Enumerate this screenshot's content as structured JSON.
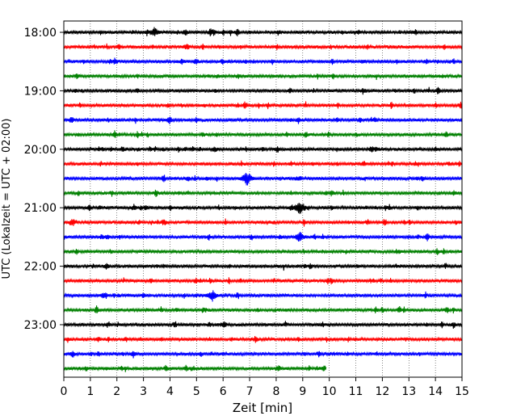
{
  "chart_data": {
    "type": "line",
    "chart_kind": "helicorder",
    "xlabel": "Zeit  [min]",
    "ylabel": "UTC (Lokalzeit = UTC + 02:00)",
    "xlim": [
      0,
      15
    ],
    "xticks": [
      0,
      1,
      2,
      3,
      4,
      5,
      6,
      7,
      8,
      9,
      10,
      11,
      12,
      13,
      14,
      15
    ],
    "ylim": [
      "18:00",
      "23:45"
    ],
    "ytick_labels": [
      "18:00",
      "19:00",
      "20:00",
      "21:00",
      "22:00",
      "23:00"
    ],
    "grid": "vertical dotted at each minute",
    "trace_interval_min": 15,
    "colors": [
      "#000000",
      "#ff0000",
      "#0000ff",
      "#008000"
    ],
    "traces": [
      {
        "start": "18:00",
        "color": "#000000",
        "end_min": 15
      },
      {
        "start": "18:15",
        "color": "#ff0000",
        "end_min": 15
      },
      {
        "start": "18:30",
        "color": "#0000ff",
        "end_min": 15
      },
      {
        "start": "18:45",
        "color": "#008000",
        "end_min": 15
      },
      {
        "start": "19:00",
        "color": "#000000",
        "end_min": 15
      },
      {
        "start": "19:15",
        "color": "#ff0000",
        "end_min": 15
      },
      {
        "start": "19:30",
        "color": "#0000ff",
        "end_min": 15
      },
      {
        "start": "19:45",
        "color": "#008000",
        "end_min": 15
      },
      {
        "start": "20:00",
        "color": "#000000",
        "end_min": 15
      },
      {
        "start": "20:15",
        "color": "#ff0000",
        "end_min": 15
      },
      {
        "start": "20:30",
        "color": "#0000ff",
        "end_min": 15
      },
      {
        "start": "20:45",
        "color": "#008000",
        "end_min": 15
      },
      {
        "start": "21:00",
        "color": "#000000",
        "end_min": 15
      },
      {
        "start": "21:15",
        "color": "#ff0000",
        "end_min": 15
      },
      {
        "start": "21:30",
        "color": "#0000ff",
        "end_min": 15
      },
      {
        "start": "21:45",
        "color": "#008000",
        "end_min": 15
      },
      {
        "start": "22:00",
        "color": "#000000",
        "end_min": 15
      },
      {
        "start": "22:15",
        "color": "#ff0000",
        "end_min": 15
      },
      {
        "start": "22:30",
        "color": "#0000ff",
        "end_min": 15
      },
      {
        "start": "22:45",
        "color": "#008000",
        "end_min": 15
      },
      {
        "start": "23:00",
        "color": "#000000",
        "end_min": 15
      },
      {
        "start": "23:15",
        "color": "#ff0000",
        "end_min": 15
      },
      {
        "start": "23:30",
        "color": "#0000ff",
        "end_min": 15
      },
      {
        "start": "23:45",
        "color": "#008000",
        "end_min": 9.9
      }
    ],
    "notable_events": [
      {
        "trace": "18:00",
        "t_min": 3.4
      },
      {
        "trace": "20:30",
        "t_min": 6.9
      },
      {
        "trace": "21:00",
        "t_min": 8.9
      },
      {
        "trace": "21:30",
        "t_min": 8.9
      },
      {
        "trace": "22:30",
        "t_min": 5.6
      }
    ]
  }
}
